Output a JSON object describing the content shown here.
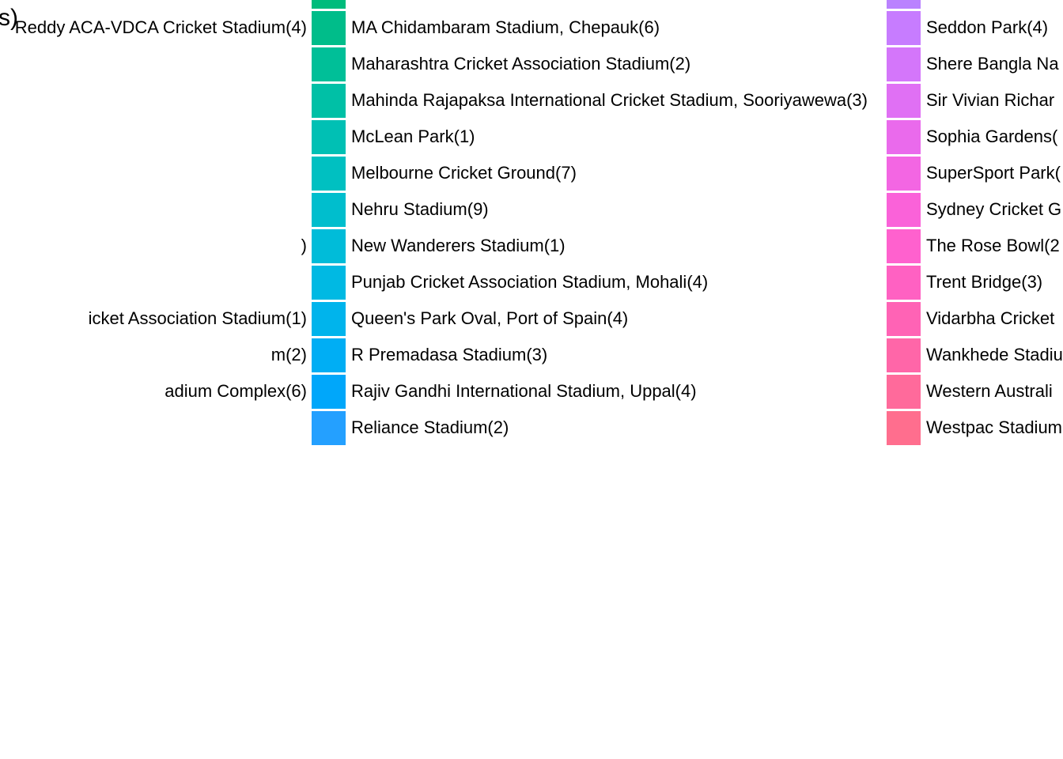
{
  "chart_data": {
    "type": "pie",
    "title_fragment": "s)",
    "legend_columns": [
      {
        "entries": [
          {
            "label": "Reddy ACA-VDCA Cricket Stadium(4)",
            "visible_text": "Reddy ACA-VDCA Cricket Stadium(4)",
            "value": 4
          },
          {
            "label": "",
            "visible_text": "",
            "value": null
          },
          {
            "label": "",
            "visible_text": "",
            "value": null
          },
          {
            "label": "",
            "visible_text": "",
            "value": null
          },
          {
            "label": "",
            "visible_text": "",
            "value": null
          },
          {
            "label": "",
            "visible_text": "",
            "value": null
          },
          {
            "label": "",
            "visible_text": ")",
            "value": null
          },
          {
            "label": "",
            "visible_text": "",
            "value": null
          },
          {
            "label": "",
            "visible_text": "icket Association Stadium(1)",
            "value": 1
          },
          {
            "label": "",
            "visible_text": "m(2)",
            "value": 2
          },
          {
            "label": "",
            "visible_text": "adium Complex(6)",
            "value": 6
          },
          {
            "label": "",
            "visible_text": "",
            "value": null
          }
        ]
      },
      {
        "entries": [
          {
            "label": "MA Chidambaram Stadium, Chepauk(6)",
            "visible_text": "MA Chidambaram Stadium, Chepauk(6)",
            "value": 6,
            "color": "#00BD8A"
          },
          {
            "label": "Maharashtra Cricket Association Stadium(2)",
            "visible_text": "Maharashtra Cricket Association Stadium(2)",
            "value": 2,
            "color": "#00BF98"
          },
          {
            "label": "Mahinda Rajapaksa International Cricket Stadium, Sooriyawewa(3)",
            "visible_text": "Mahinda Rajapaksa International Cricket Stadium, Sooriyawewa(3)",
            "value": 3,
            "color": "#00C0A6"
          },
          {
            "label": "McLean Park(1)",
            "visible_text": "McLean Park(1)",
            "value": 1,
            "color": "#00C0B4"
          },
          {
            "label": "Melbourne Cricket Ground(7)",
            "visible_text": "Melbourne Cricket Ground(7)",
            "value": 7,
            "color": "#00C0C1"
          },
          {
            "label": "Nehru Stadium(9)",
            "visible_text": "Nehru Stadium(9)",
            "value": 9,
            "color": "#00BECD"
          },
          {
            "label": "New Wanderers Stadium(1)",
            "visible_text": "New Wanderers Stadium(1)",
            "value": 1,
            "color": "#00BCD9"
          },
          {
            "label": "Punjab Cricket Association Stadium, Mohali(4)",
            "visible_text": "Punjab Cricket Association Stadium, Mohali(4)",
            "value": 4,
            "color": "#00B9E3"
          },
          {
            "label": "Queen's Park Oval, Port of Spain(4)",
            "visible_text": "Queen's Park Oval, Port of Spain(4)",
            "value": 4,
            "color": "#00B4EC"
          },
          {
            "label": "R Premadasa Stadium(3)",
            "visible_text": "R Premadasa Stadium(3)",
            "value": 3,
            "color": "#00AEF4"
          },
          {
            "label": "Rajiv Gandhi International Stadium, Uppal(4)",
            "visible_text": "Rajiv Gandhi International Stadium, Uppal(4)",
            "value": 4,
            "color": "#00A7FA"
          },
          {
            "label": "Reliance Stadium(2)",
            "visible_text": "Reliance Stadium(2)",
            "value": 2,
            "color": "#24A0FF"
          }
        ],
        "above_color": "#00BC7C"
      },
      {
        "entries": [
          {
            "label": "Seddon Park(4)",
            "visible_text": "Seddon Park(4)",
            "value": 4,
            "color": "#C77CFF"
          },
          {
            "label": "",
            "visible_text": "Shere Bangla Na",
            "value": null,
            "color": "#D476FA"
          },
          {
            "label": "",
            "visible_text": "Sir Vivian Richar",
            "value": null,
            "color": "#E070F4"
          },
          {
            "label": "",
            "visible_text": "Sophia Gardens(",
            "value": null,
            "color": "#EA6AEC"
          },
          {
            "label": "",
            "visible_text": "SuperSport Park(",
            "value": null,
            "color": "#F366E3"
          },
          {
            "label": "",
            "visible_text": "Sydney Cricket G",
            "value": null,
            "color": "#FA62D9"
          },
          {
            "label": "",
            "visible_text": "The Rose Bowl(2",
            "value": null,
            "color": "#FF61CE"
          },
          {
            "label": "Trent Bridge(3)",
            "visible_text": "Trent Bridge(3)",
            "value": 3,
            "color": "#FF61C2"
          },
          {
            "label": "",
            "visible_text": "Vidarbha Cricket",
            "value": null,
            "color": "#FF63B5"
          },
          {
            "label": "",
            "visible_text": "Wankhede Stadiu",
            "value": null,
            "color": "#FF66A8"
          },
          {
            "label": "",
            "visible_text": "Western Australi",
            "value": null,
            "color": "#FF6A9B"
          },
          {
            "label": "",
            "visible_text": "Westpac Stadium",
            "value": null,
            "color": "#FF6E8E"
          }
        ],
        "above_color": "#BA82FF"
      }
    ],
    "legend_placement": "right",
    "grid": false
  }
}
